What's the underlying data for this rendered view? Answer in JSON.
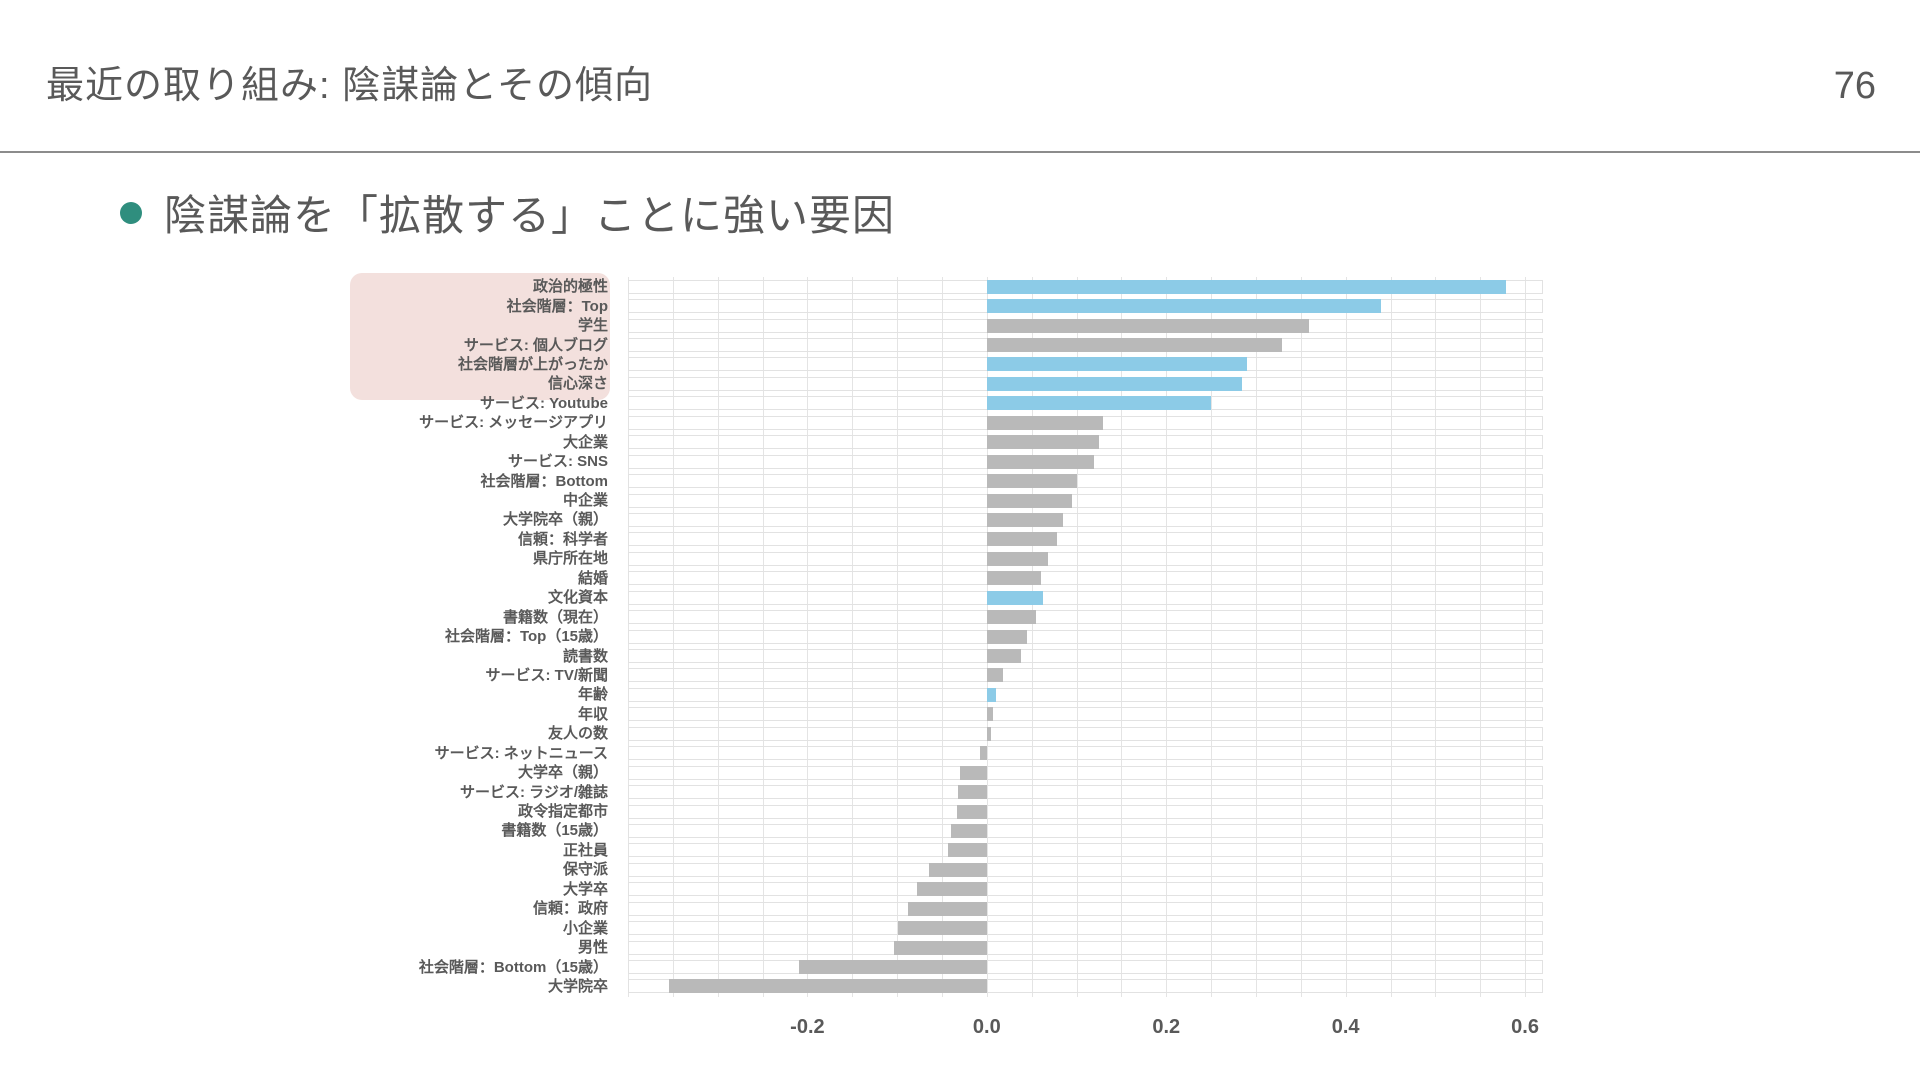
{
  "slide": {
    "title": "最近の取り組み: 陰謀論とその傾向",
    "page_number": "76",
    "bullet_text": "陰謀論を「拡散する」ことに強い要因",
    "colors": {
      "text": "#595959",
      "bullet_accent": "#2f8e7e",
      "label_highlight_box": "#f3e0dd"
    }
  },
  "chart_data": {
    "type": "bar",
    "orientation": "horizontal",
    "title": "",
    "xlabel": "",
    "ylabel": "",
    "xlim": [
      -0.4,
      0.62
    ],
    "gridline_step": 0.05,
    "grid": true,
    "legend": false,
    "bar_color_default": "#b9b9b9",
    "bar_color_highlight": "#8ccbe7",
    "highlight_indices": [
      0,
      1,
      4,
      5,
      6,
      16,
      21
    ],
    "label_box_row_span": [
      0,
      5
    ],
    "xticks": [
      {
        "label": "-0.2",
        "value": -0.2
      },
      {
        "label": "0.0",
        "value": 0.0
      },
      {
        "label": "0.2",
        "value": 0.2
      },
      {
        "label": "0.4",
        "value": 0.4
      },
      {
        "label": "0.6",
        "value": 0.6
      }
    ],
    "categories": [
      "政治的極性",
      "社会階層：Top",
      "学生",
      "サービス: 個人ブログ",
      "社会階層が上がったか",
      "信心深さ",
      "サービス: Youtube",
      "サービス: メッセージアプリ",
      "大企業",
      "サービス: SNS",
      "社会階層：Bottom",
      "中企業",
      "大学院卒（親）",
      "信頼：科学者",
      "県庁所在地",
      "結婚",
      "文化資本",
      "書籍数（現在）",
      "社会階層：Top（15歳）",
      "読書数",
      "サービス: TV/新聞",
      "年齢",
      "年収",
      "友人の数",
      "サービス: ネットニュース",
      "大学卒（親）",
      "サービス: ラジオ/雑誌",
      "政令指定都市",
      "書籍数（15歳）",
      "正社員",
      "保守派",
      "大学卒",
      "信頼：政府",
      "小企業",
      "男性",
      "社会階層：Bottom（15歳）",
      "大学院卒"
    ],
    "values": [
      0.58,
      0.44,
      0.36,
      0.33,
      0.29,
      0.285,
      0.25,
      0.13,
      0.125,
      0.12,
      0.1,
      0.095,
      0.085,
      0.078,
      0.068,
      0.06,
      0.062,
      0.055,
      0.045,
      0.038,
      0.018,
      0.01,
      0.007,
      0.004,
      -0.008,
      -0.03,
      -0.032,
      -0.034,
      -0.04,
      -0.044,
      -0.065,
      -0.078,
      -0.088,
      -0.1,
      -0.104,
      -0.21,
      -0.355
    ]
  }
}
